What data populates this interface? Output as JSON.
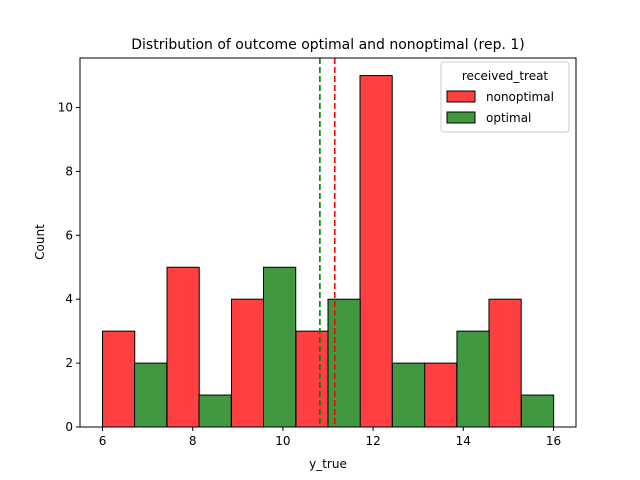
{
  "chart_data": {
    "type": "bar",
    "title": "Distribution of outcome optimal and nonoptimal (rep. 1)",
    "xlabel": "y_true",
    "ylabel": "Count",
    "xlim": [
      5.5,
      16.5
    ],
    "ylim": [
      0,
      11.55
    ],
    "xticks": [
      6,
      8,
      10,
      12,
      14,
      16
    ],
    "yticks": [
      0,
      2,
      4,
      6,
      8,
      10
    ],
    "grid": false,
    "bin_width": 0.7143,
    "legend": {
      "title": "received_treat",
      "placement": "top-right",
      "entries": [
        {
          "name": "nonoptimal",
          "color": "#ff4040"
        },
        {
          "name": "optimal",
          "color": "#409940"
        }
      ]
    },
    "series": [
      {
        "name": "nonoptimal",
        "color": "#ff4040",
        "bins": [
          {
            "start": 6.0,
            "count": 3
          },
          {
            "start": 7.43,
            "count": 5
          },
          {
            "start": 8.86,
            "count": 4
          },
          {
            "start": 10.29,
            "count": 3
          },
          {
            "start": 11.71,
            "count": 11
          },
          {
            "start": 13.14,
            "count": 2
          },
          {
            "start": 14.57,
            "count": 4
          }
        ]
      },
      {
        "name": "optimal",
        "color": "#409940",
        "bins": [
          {
            "start": 6.71,
            "count": 2
          },
          {
            "start": 8.14,
            "count": 1
          },
          {
            "start": 9.57,
            "count": 5
          },
          {
            "start": 11.0,
            "count": 4
          },
          {
            "start": 12.43,
            "count": 2
          },
          {
            "start": 13.86,
            "count": 3
          },
          {
            "start": 15.29,
            "count": 1
          }
        ]
      }
    ],
    "mean_lines": [
      {
        "series": "optimal",
        "x": 10.82,
        "color": "#008000",
        "style": "dashed"
      },
      {
        "series": "nonoptimal",
        "x": 11.15,
        "color": "#ff0000",
        "style": "dashed"
      }
    ]
  }
}
